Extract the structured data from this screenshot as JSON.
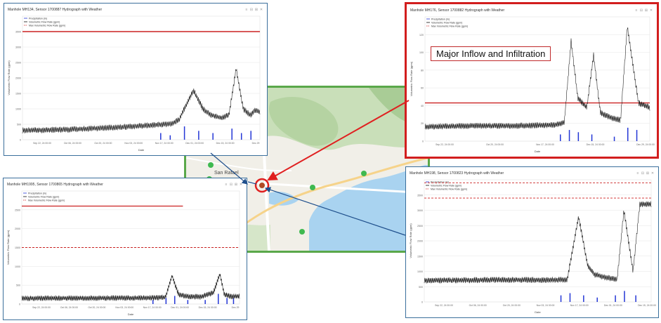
{
  "colors": {
    "flow": "#111111",
    "rain": "#2437d6",
    "max": "#cc2222",
    "grid": "#e6e6e6",
    "map_border": "#5aa84a",
    "arrow_blue": "#1f4f8c",
    "arrow_red": "#e02020"
  },
  "map": {
    "city_label": "San Rafael"
  },
  "callout": "Major Inflow and Infiltration",
  "legend": [
    "Precipitation (in)",
    "Volumetric Flow Rate (gpm)",
    "Max Volumetric Flow Rate (gpm)"
  ],
  "xlabel": "Date",
  "ylabel": "Volumetric Flow Rate (gpm)",
  "panels": [
    {
      "id": "p1",
      "title": "Manhole MH134, Sensor 1700887 Hydrograph with Weather",
      "xticks": [
        "Sep 22, 24 00:00",
        "Oct 06, 24 00:00",
        "Oct 20, 24 00:00",
        "Nov 03, 24 00:00",
        "Nov 17, 24 00:00",
        "Dec 01, 24 00:00",
        "Dec 15, 24 00:00",
        "Dec 29"
      ],
      "yticks": [
        "0",
        "500",
        "1000",
        "1500",
        "2000",
        "2500",
        "3000",
        "3500"
      ]
    },
    {
      "id": "p2",
      "title": "Manhole MH176, Sensor 1700882 Hydrograph with Weather",
      "xticks": [
        "Sep 22, 24 00:00",
        "Oct 20, 24 00:00",
        "Nov 17, 24 00:00",
        "Dec 15, 24 00:00",
        "Dec 29, 24 00:00"
      ],
      "yticks": [
        "0",
        "20",
        "40",
        "60",
        "80",
        "100",
        "120"
      ]
    },
    {
      "id": "p3",
      "title": "Manhole MH1995, Sensor 1700865 Hydrograph with Weather",
      "xticks": [
        "Sep 22, 24 00:00",
        "Oct 06, 24 00:00",
        "Oct 20, 24 00:00",
        "Nov 03, 24 00:00",
        "Nov 17, 24 00:00",
        "Dec 01, 24 00:00",
        "Dec 15, 24 00:00",
        "Dec 29"
      ],
      "yticks": [
        "0",
        "500",
        "1000",
        "1500",
        "2000",
        "2500"
      ]
    },
    {
      "id": "p4",
      "title": "Manhole MH198, Sensor 1700823 Hydrograph with Weather",
      "xticks": [
        "Sep 22, 24 00:00",
        "Oct 06, 24 00:00",
        "Oct 20, 24 00:00",
        "Nov 03, 24 00:00",
        "Nov 17, 24 00:00",
        "Dec 01, 24 00:00",
        "Dec 15, 24 00:00"
      ],
      "yticks": [
        "0",
        "500",
        "1000",
        "1500",
        "2000",
        "2500",
        "3000",
        "3500"
      ]
    }
  ],
  "chart_data": [
    {
      "type": "line",
      "title": "Manhole MH134, Sensor 1700887 Hydrograph with Weather",
      "xlabel": "Date",
      "ylabel": "Volumetric Flow Rate (gpm)",
      "ylim": [
        0,
        4000
      ],
      "series": [
        {
          "name": "Volumetric Flow Rate (gpm)",
          "x": [
            0,
            0.2,
            0.4,
            0.55,
            0.63,
            0.66,
            0.68,
            0.72,
            0.76,
            0.79,
            0.81,
            0.84,
            0.87,
            0.9,
            0.93,
            0.96,
            0.98,
            1.0
          ],
          "values": [
            300,
            330,
            400,
            470,
            520,
            650,
            980,
            1600,
            1000,
            820,
            760,
            700,
            820,
            2300,
            1000,
            800,
            950,
            900
          ]
        },
        {
          "name": "Max Volumetric Flow Rate (gpm)",
          "x": [
            0,
            1
          ],
          "values": [
            3500,
            3500
          ]
        },
        {
          "name": "Precipitation (in)",
          "x": [
            0.58,
            0.62,
            0.68,
            0.74,
            0.8,
            0.88,
            0.92,
            0.96
          ],
          "values": [
            0.3,
            0.2,
            0.6,
            0.4,
            0.3,
            0.5,
            0.3,
            0.4
          ]
        }
      ]
    },
    {
      "type": "line",
      "title": "Manhole MH176, Sensor 1700882 Hydrograph with Weather",
      "xlabel": "Date",
      "ylabel": "Volumetric Flow Rate (gpm)",
      "ylim": [
        0,
        130
      ],
      "series": [
        {
          "name": "Volumetric Flow Rate (gpm)",
          "x": [
            0,
            0.2,
            0.4,
            0.58,
            0.62,
            0.65,
            0.68,
            0.72,
            0.75,
            0.78,
            0.82,
            0.87,
            0.9,
            0.95,
            1.0
          ],
          "values": [
            15,
            16,
            16,
            17,
            20,
            105,
            45,
            35,
            90,
            30,
            25,
            22,
            120,
            40,
            35
          ]
        },
        {
          "name": "Max Volumetric Flow Rate (gpm)",
          "x": [
            0,
            1
          ],
          "values": [
            40,
            40
          ]
        },
        {
          "name": "Precipitation (in)",
          "x": [
            0.6,
            0.64,
            0.68,
            0.74,
            0.84,
            0.9,
            0.94
          ],
          "values": [
            0.3,
            0.5,
            0.4,
            0.3,
            0.2,
            0.6,
            0.5
          ]
        }
      ]
    },
    {
      "type": "line",
      "title": "Manhole MH1995, Sensor 1700865 Hydrograph with Weather",
      "xlabel": "Date",
      "ylabel": "Volumetric Flow Rate (gpm)",
      "ylim": [
        0,
        3000
      ],
      "series": [
        {
          "name": "Volumetric Flow Rate (gpm)",
          "x": [
            0,
            0.3,
            0.55,
            0.62,
            0.66,
            0.69,
            0.72,
            0.76,
            0.82,
            0.88,
            0.91,
            0.93,
            0.96
          ],
          "values": [
            150,
            160,
            160,
            170,
            180,
            750,
            250,
            200,
            190,
            300,
            800,
            250,
            200
          ]
        },
        {
          "name": "Max Volumetric Flow Rate (gpm)",
          "x": [
            0,
            1
          ],
          "values": [
            1500,
            1500
          ]
        },
        {
          "name": "Precipitation (in)",
          "x": [
            0.6,
            0.66,
            0.7,
            0.76,
            0.84,
            0.9,
            0.94,
            0.97
          ],
          "values": [
            0.2,
            0.3,
            0.4,
            0.2,
            0.2,
            0.5,
            0.3,
            0.3
          ]
        }
      ]
    },
    {
      "type": "line",
      "title": "Manhole MH198, Sensor 1700823 Hydrograph with Weather",
      "xlabel": "Date",
      "ylabel": "Volumetric Flow Rate (gpm)",
      "ylim": [
        0,
        4000
      ],
      "series": [
        {
          "name": "Volumetric Flow Rate (gpm)",
          "x": [
            0,
            0.3,
            0.55,
            0.63,
            0.68,
            0.72,
            0.75,
            0.8,
            0.85,
            0.88,
            0.92,
            0.95,
            0.98
          ],
          "values": [
            700,
            720,
            720,
            730,
            2800,
            1200,
            900,
            800,
            750,
            3000,
            1000,
            3200,
            3200
          ]
        },
        {
          "name": "Max Volumetric Flow Rate (gpm)",
          "x": [
            0,
            1
          ],
          "values": [
            3900,
            3900
          ]
        },
        {
          "name": "Precipitation (in)",
          "x": [
            0.6,
            0.64,
            0.7,
            0.76,
            0.84,
            0.88,
            0.93
          ],
          "values": [
            0.3,
            0.4,
            0.3,
            0.2,
            0.3,
            0.5,
            0.3
          ]
        }
      ]
    }
  ]
}
